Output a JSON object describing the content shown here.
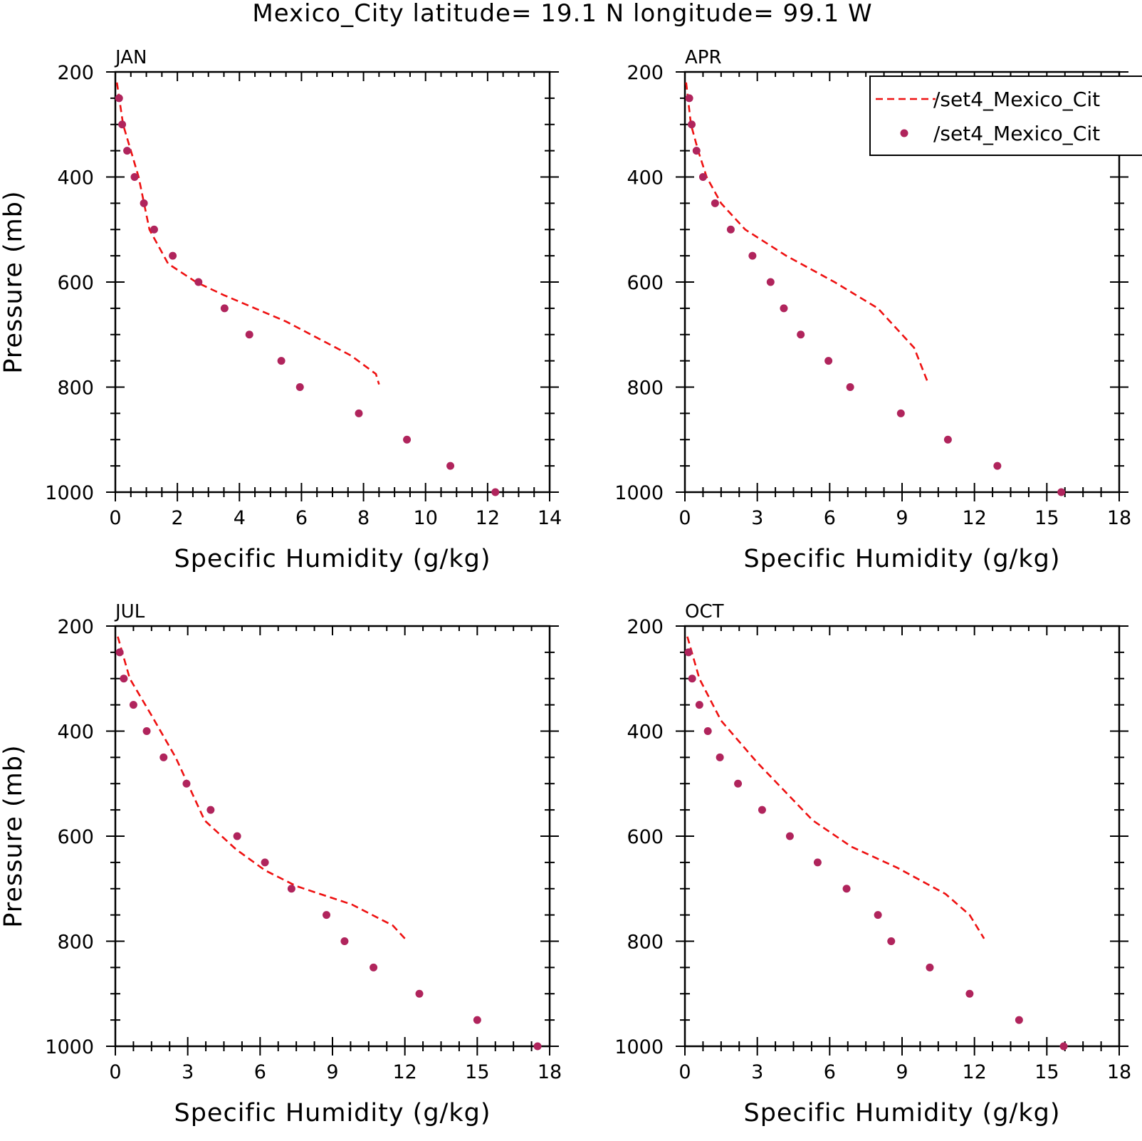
{
  "title": "Mexico_City  latitude= 19.1 N longitude= 99.1 W",
  "colors": {
    "model": "#ee1111",
    "obs": "#b0245c",
    "axes": "#000000"
  },
  "legend": {
    "placement": "top-right of APR panel",
    "entries": [
      {
        "label": "/set4_Mexico_Cit",
        "style": "dashed-line",
        "color": "#ee1111"
      },
      {
        "label": "/set4_Mexico_Cit",
        "style": "dot",
        "color": "#b0245c"
      }
    ]
  },
  "chart_data": [
    {
      "type": "line",
      "panel": "JAN",
      "xlabel": "Specific Humidity (g/kg)",
      "ylabel": "Pressure (mb)",
      "xlim": [
        0,
        14
      ],
      "xticks": [
        0,
        2,
        4,
        6,
        8,
        10,
        12,
        14
      ],
      "ylim": [
        200,
        1000
      ],
      "yticks": [
        200,
        400,
        600,
        800,
        1000
      ],
      "y_inverted": true,
      "series": [
        {
          "name": "/set4_Mexico_Cit",
          "style": "dashed-line",
          "x": [
            0.05,
            0.25,
            0.5,
            0.75,
            1.1,
            1.7,
            2.6,
            3.5,
            5.5,
            7.6,
            8.4,
            8.5
          ],
          "y": [
            220,
            300,
            350,
            400,
            500,
            565,
            600,
            625,
            675,
            740,
            775,
            795
          ]
        },
        {
          "name": "/set4_Mexico_Cit",
          "style": "dot",
          "x": [
            0.12,
            0.22,
            0.38,
            0.62,
            0.92,
            1.25,
            1.85,
            2.68,
            3.52,
            4.32,
            5.35,
            5.95,
            7.85,
            9.4,
            10.8,
            12.25
          ],
          "y": [
            250,
            300,
            350,
            400,
            450,
            500,
            550,
            600,
            650,
            700,
            750,
            800,
            850,
            900,
            950,
            1000
          ]
        }
      ]
    },
    {
      "type": "line",
      "panel": "APR",
      "xlabel": "Specific Humidity (g/kg)",
      "ylabel": "",
      "xlim": [
        0,
        18
      ],
      "xticks": [
        0,
        3,
        6,
        9,
        12,
        15,
        18
      ],
      "ylim": [
        200,
        1000
      ],
      "yticks": [
        200,
        400,
        600,
        800,
        1000
      ],
      "y_inverted": true,
      "series": [
        {
          "name": "/set4_Mexico_Cit",
          "style": "dashed-line",
          "x": [
            0.05,
            0.25,
            0.55,
            0.9,
            1.5,
            2.5,
            4.2,
            6.2,
            8.0,
            9.5,
            10.1
          ],
          "y": [
            220,
            300,
            350,
            400,
            450,
            500,
            550,
            600,
            650,
            725,
            795
          ]
        },
        {
          "name": "/set4_Mexico_Cit",
          "style": "dot",
          "x": [
            0.18,
            0.28,
            0.48,
            0.75,
            1.25,
            1.9,
            2.8,
            3.55,
            4.1,
            4.8,
            5.95,
            6.85,
            8.95,
            10.9,
            12.95,
            15.6
          ],
          "y": [
            250,
            300,
            350,
            400,
            450,
            500,
            550,
            600,
            650,
            700,
            750,
            800,
            850,
            900,
            950,
            1000
          ]
        }
      ]
    },
    {
      "type": "line",
      "panel": "JUL",
      "xlabel": "Specific Humidity (g/kg)",
      "ylabel": "Pressure (mb)",
      "xlim": [
        0,
        18
      ],
      "xticks": [
        0,
        3,
        6,
        9,
        12,
        15,
        18
      ],
      "ylim": [
        200,
        1000
      ],
      "yticks": [
        200,
        400,
        600,
        800,
        1000
      ],
      "y_inverted": true,
      "series": [
        {
          "name": "/set4_Mexico_Cit",
          "style": "dashed-line",
          "x": [
            0.1,
            0.6,
            1.5,
            2.5,
            3.7,
            5.0,
            6.2,
            7.5,
            9.8,
            11.5,
            12.0
          ],
          "y": [
            220,
            300,
            370,
            450,
            570,
            625,
            665,
            695,
            730,
            770,
            795
          ]
        },
        {
          "name": "/set4_Mexico_Cit",
          "style": "dot",
          "x": [
            0.18,
            0.35,
            0.75,
            1.3,
            2.0,
            2.95,
            3.95,
            5.05,
            6.2,
            7.3,
            8.75,
            9.5,
            10.7,
            12.6,
            15.0,
            17.5
          ],
          "y": [
            250,
            300,
            350,
            400,
            450,
            500,
            550,
            600,
            650,
            700,
            750,
            800,
            850,
            900,
            950,
            1000
          ]
        }
      ]
    },
    {
      "type": "line",
      "panel": "OCT",
      "xlabel": "Specific Humidity (g/kg)",
      "ylabel": "",
      "xlim": [
        0,
        18
      ],
      "xticks": [
        0,
        3,
        6,
        9,
        12,
        15,
        18
      ],
      "ylim": [
        200,
        1000
      ],
      "yticks": [
        200,
        400,
        600,
        800,
        1000
      ],
      "y_inverted": true,
      "series": [
        {
          "name": "/set4_Mexico_Cit",
          "style": "dashed-line",
          "x": [
            0.1,
            0.6,
            1.5,
            3.0,
            5.3,
            6.9,
            8.8,
            10.8,
            11.8,
            12.4
          ],
          "y": [
            220,
            300,
            380,
            460,
            570,
            620,
            660,
            710,
            750,
            795
          ]
        },
        {
          "name": "/set4_Mexico_Cit",
          "style": "dot",
          "x": [
            0.15,
            0.3,
            0.6,
            0.95,
            1.45,
            2.2,
            3.2,
            4.35,
            5.5,
            6.7,
            8.0,
            8.55,
            10.15,
            11.8,
            13.85,
            15.7
          ],
          "y": [
            250,
            300,
            350,
            400,
            450,
            500,
            550,
            600,
            650,
            700,
            750,
            800,
            850,
            900,
            950,
            1000
          ]
        }
      ]
    }
  ]
}
